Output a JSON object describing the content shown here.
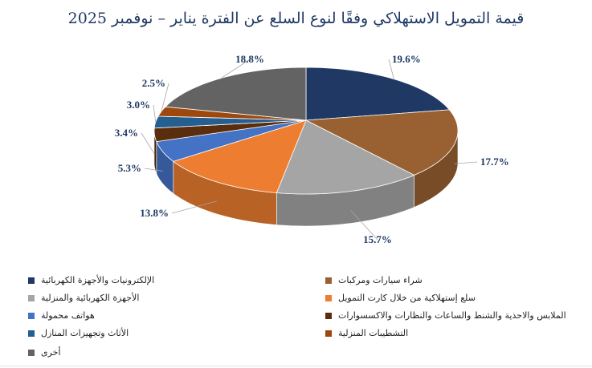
{
  "chart_data": {
    "type": "pie",
    "title": "قيمة التمويل الاستهلاكي وفقًا لنوع السلع عن الفترة يناير – نوفمبر 2025",
    "legend_position": "bottom",
    "slices": [
      {
        "name": "الإلكترونيات والأجهزة الكهربائية",
        "value": 19.6,
        "label": "19.6%",
        "color": "#1F3864"
      },
      {
        "name": "شراء سيارات ومركبات",
        "value": 17.7,
        "label": "17.7%",
        "color": "#996131"
      },
      {
        "name": "الأجهزة الكهربائية والمنزلية",
        "value": 15.7,
        "label": "15.7%",
        "color": "#A5A5A5"
      },
      {
        "name": "سلع إستهلاكية من خلال كارت التمويل",
        "value": 13.8,
        "label": "13.8%",
        "color": "#ED7D31"
      },
      {
        "name": "هواتف محمولة",
        "value": 5.3,
        "label": "5.3%",
        "color": "#4472C4"
      },
      {
        "name": "الملابس والاحذية والشنط والساعات والنظارات والاكسسوارات",
        "value": 3.4,
        "label": "3.4%",
        "color": "#5A2D0C"
      },
      {
        "name": "الأثاث وتجهيزات المنازل",
        "value": 3.0,
        "label": "3.0%",
        "color": "#255E91"
      },
      {
        "name": "التشطيبات المنزلية",
        "value": 2.5,
        "label": "2.5%",
        "color": "#9E480E"
      },
      {
        "name": "أخرى",
        "value": 18.8,
        "label": "18.8%",
        "color": "#636363"
      }
    ]
  }
}
